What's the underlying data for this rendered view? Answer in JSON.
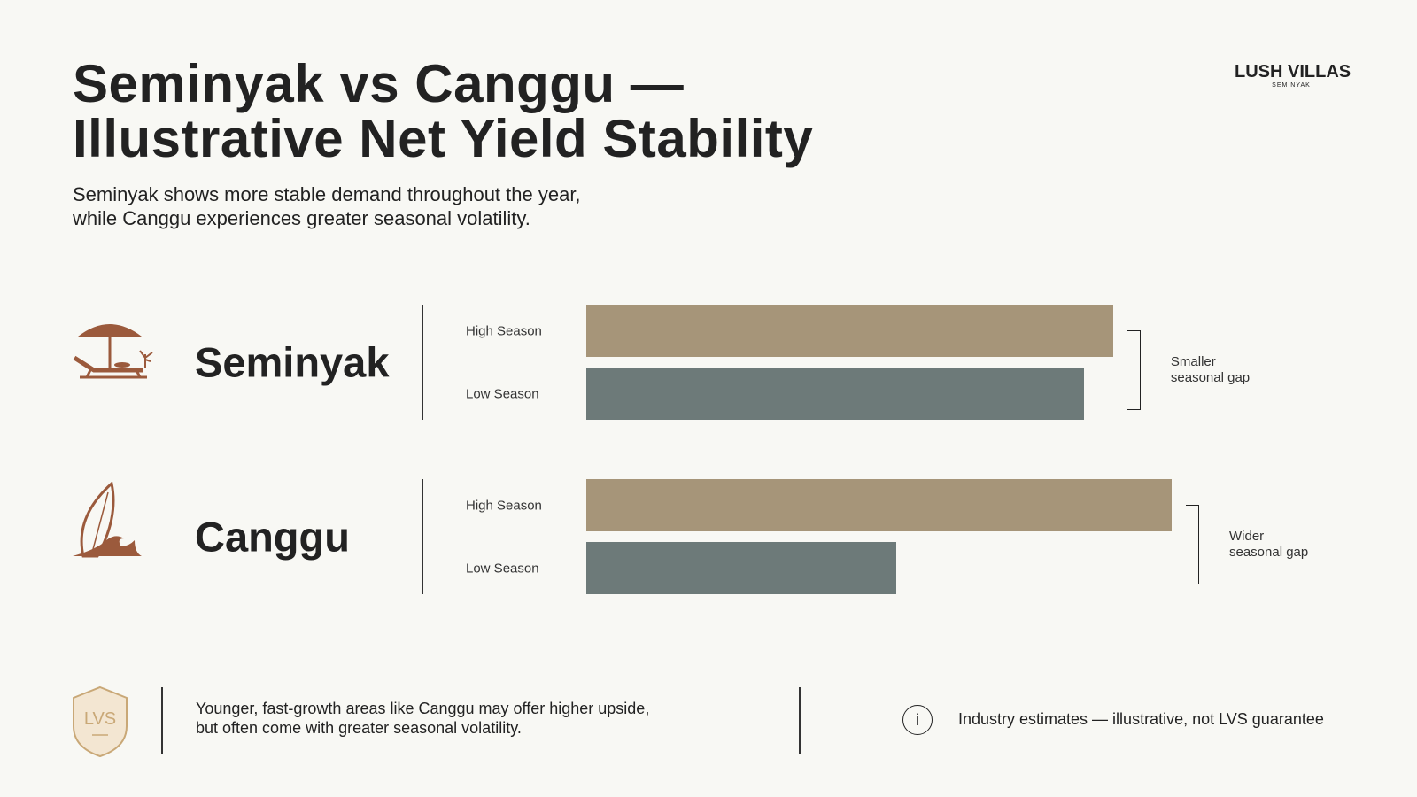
{
  "brand": {
    "name": "LUSH VILLAS",
    "sub": "SEMINYAK"
  },
  "chart_data": {
    "type": "grouped-hbar",
    "title_lines": [
      "Seminyak vs Canggu —",
      "Illustrative Net Yield Stability"
    ],
    "subtitle_lines": [
      "Seminyak shows more stable demand throughout the year,",
      "while Canggu experiences greater seasonal volatility."
    ],
    "groups": [
      {
        "name": "Seminyak",
        "annotation": [
          "Smaller",
          "seasonal gap"
        ]
      },
      {
        "name": "Canggu",
        "annotation": [
          "Wider",
          "seasonal gap"
        ]
      }
    ],
    "series": [
      {
        "name": "High Season",
        "color": "#a69579",
        "values": [
          90,
          100
        ]
      },
      {
        "name": "Low Season",
        "color": "#6d7a79",
        "values": [
          85,
          53
        ]
      }
    ]
  },
  "footer": {
    "badge": "LVS",
    "note_lines": [
      "Younger, fast-growth areas like Canggu may offer higher upside,",
      "but often come with greater seasonal volatility."
    ],
    "info_icon": "i",
    "disclaimer": "Industry estimates — illustrative, not LVS guarantee"
  }
}
